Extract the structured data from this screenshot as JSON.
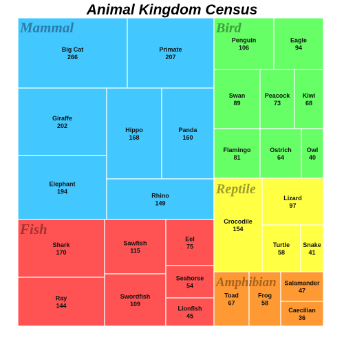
{
  "chart_data": {
    "type": "treemap",
    "title": "Animal Kingdom Census",
    "groups": [
      {
        "name": "Mammal",
        "color": "#42C8FF",
        "label_color": "#2E7BA6",
        "items": [
          {
            "name": "Big Cat",
            "value": 266
          },
          {
            "name": "Primate",
            "value": 207
          },
          {
            "name": "Giraffe",
            "value": 202
          },
          {
            "name": "Elephant",
            "value": 194
          },
          {
            "name": "Hippo",
            "value": 168
          },
          {
            "name": "Panda",
            "value": 160
          },
          {
            "name": "Rhino",
            "value": 149
          }
        ]
      },
      {
        "name": "Bird",
        "color": "#66FF66",
        "label_color": "#3E9E3E",
        "items": [
          {
            "name": "Penguin",
            "value": 106
          },
          {
            "name": "Eagle",
            "value": 94
          },
          {
            "name": "Swan",
            "value": 89
          },
          {
            "name": "Peacock",
            "value": 73
          },
          {
            "name": "Kiwi",
            "value": 68
          },
          {
            "name": "Flamingo",
            "value": 81
          },
          {
            "name": "Ostrich",
            "value": 64
          },
          {
            "name": "Owl",
            "value": 40
          }
        ]
      },
      {
        "name": "Fish",
        "color": "#FF5252",
        "label_color": "#A63232",
        "items": [
          {
            "name": "Shark",
            "value": 170
          },
          {
            "name": "Ray",
            "value": 144
          },
          {
            "name": "Sawfish",
            "value": 115
          },
          {
            "name": "Swordfish",
            "value": 109
          },
          {
            "name": "Eel",
            "value": 75
          },
          {
            "name": "Seahorse",
            "value": 54
          },
          {
            "name": "Lionfish",
            "value": 45
          }
        ]
      },
      {
        "name": "Reptile",
        "color": "#FFFF44",
        "label_color": "#9E9E2E",
        "items": [
          {
            "name": "Crocodile",
            "value": 154
          },
          {
            "name": "Lizard",
            "value": 97
          },
          {
            "name": "Turtle",
            "value": 58
          },
          {
            "name": "Snake",
            "value": 41
          }
        ]
      },
      {
        "name": "Amphibian",
        "color": "#FF9933",
        "label_color": "#A66320",
        "items": [
          {
            "name": "Toad",
            "value": 67
          },
          {
            "name": "Frog",
            "value": 58
          },
          {
            "name": "Salamander",
            "value": 47
          },
          {
            "name": "Caecilian",
            "value": 36
          }
        ]
      }
    ]
  }
}
